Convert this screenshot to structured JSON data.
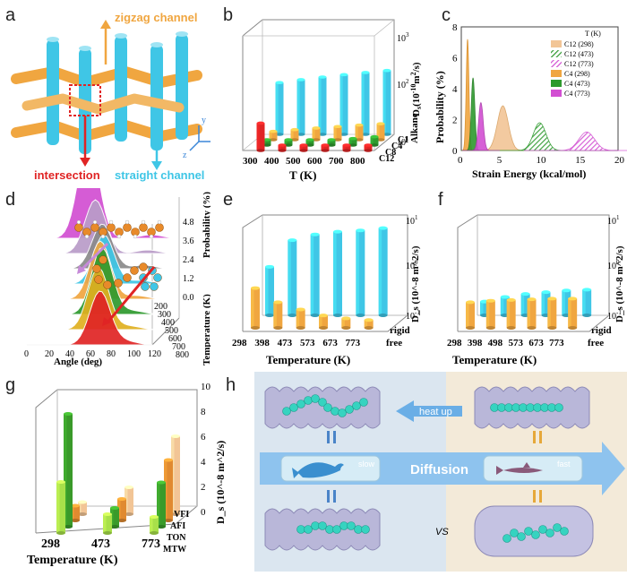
{
  "panels": {
    "a": {
      "label": "a",
      "zigzag_label": "zigzag channel",
      "intersection_label": "intersection",
      "straight_label": "straight channel",
      "axis_x": "x",
      "axis_y": "y",
      "axis_z": "z"
    },
    "b": {
      "label": "b",
      "xlabel": "T (K)",
      "zlabel": "D_s (10^-10 m^2/s)",
      "zaxis_label": "D",
      "zaxis_sub": "s",
      "zaxis_unit": "(10",
      "zaxis_exp": "-10",
      "zaxis_rest": "m",
      "zaxis_exp2": "2",
      "zaxis_end": "/s)",
      "alkane_label": "Alkane",
      "x_ticks": [
        "300",
        "400",
        "500",
        "600",
        "700",
        "800"
      ],
      "y_ticks": [
        "C12",
        "C8",
        "C4",
        "C1"
      ],
      "z_ticks": [
        "10^1",
        "10^2",
        "10^3"
      ],
      "z_tick_base": "10",
      "z_tick_exps": [
        "1",
        "2",
        "3"
      ]
    },
    "c": {
      "label": "c",
      "xlabel": "Strain Energy (kcal/mol)",
      "ylabel": "Probability (%)",
      "legend_title": "T (K)",
      "legend": [
        "C12 (298)",
        "C12 (473)",
        "C12 (773)",
        "C4 (298)",
        "C4 (473)",
        "C4 (773)"
      ],
      "x_ticks": [
        "0",
        "5",
        "10",
        "15",
        "20"
      ],
      "y_ticks": [
        "0",
        "2",
        "4",
        "6",
        "8"
      ]
    },
    "d": {
      "label": "d",
      "xlabel": "Angle (deg)",
      "ylabel": "Probability (%)",
      "zlabel": "Temperature (K)",
      "x_ticks": [
        "0",
        "20",
        "40",
        "60",
        "80",
        "100",
        "120"
      ],
      "p_ticks": [
        "0.0",
        "1.2",
        "2.4",
        "3.6",
        "4.8"
      ],
      "t_ticks": [
        "200",
        "300",
        "400",
        "500",
        "600",
        "700",
        "800"
      ]
    },
    "e": {
      "label": "e",
      "xlabel": "Temperature (K)",
      "zlabel": "D_s (10^-8 m^2/s)",
      "x_ticks": [
        "298",
        "398",
        "473",
        "573",
        "673",
        "773"
      ],
      "y_ticks": [
        "rigid",
        "free"
      ],
      "z_ticks": [
        "10^-1",
        "10^0",
        "10^1"
      ]
    },
    "f": {
      "label": "f",
      "xlabel": "Temperature (K)",
      "zlabel": "D_s (10^-8 m^2/s)",
      "x_ticks": [
        "298",
        "398",
        "498",
        "573",
        "673",
        "773"
      ],
      "y_ticks": [
        "rigid",
        "free"
      ],
      "z_ticks": [
        "10^-1",
        "10^0",
        "10^1"
      ]
    },
    "g": {
      "label": "g",
      "xlabel": "Temperature (K)",
      "zlabel": "D_s (10^-8 m^2/s)",
      "x_ticks": [
        "298",
        "473",
        "773"
      ],
      "y_ticks": [
        "VFI",
        "AFI",
        "TON",
        "MTW"
      ],
      "z_ticks": [
        "0",
        "2",
        "4",
        "6",
        "8",
        "10"
      ]
    },
    "h": {
      "label": "h",
      "heat_up": "heat up",
      "diffusion": "Diffusion",
      "slow": "slow",
      "fast": "fast",
      "vs": "VS"
    }
  },
  "colors": {
    "cyan": "#3fc6e6",
    "orange": "#f0a640",
    "red": "#e02424",
    "green": "#2e9a2e",
    "magenta": "#d24fd2",
    "tan": "#f2c596",
    "arrow_blue": "#6aaee6",
    "bead": "#36d3c0"
  },
  "chart_data": [
    {
      "panel": "b",
      "type": "bar",
      "title": "",
      "categories": [
        "300",
        "400",
        "500",
        "600",
        "700",
        "800"
      ],
      "series": [
        {
          "name": "C1",
          "values": [
            80,
            90,
            100,
            110,
            120,
            130
          ]
        },
        {
          "name": "C4",
          "values": [
            14,
            15,
            16,
            17,
            18,
            19
          ]
        },
        {
          "name": "C8",
          "values": [
            10,
            11,
            12,
            12,
            13,
            14
          ]
        },
        {
          "name": "C12",
          "values": [
            30,
            10,
            6,
            4,
            3,
            3
          ]
        }
      ],
      "xlabel": "T (K)",
      "ylabel": "D_s (10^-10 m^2/s)",
      "zscale": "log",
      "zlim": [
        10,
        1000
      ]
    },
    {
      "panel": "c",
      "type": "area",
      "title": "",
      "series": [
        {
          "name": "C12 (298)",
          "peak_x": 5.3,
          "peak_y": 2.9
        },
        {
          "name": "C12 (473)",
          "peak_x": 10.0,
          "peak_y": 1.8
        },
        {
          "name": "C12 (773)",
          "peak_x": 16.0,
          "peak_y": 1.2
        },
        {
          "name": "C4 (298)",
          "peak_x": 0.8,
          "peak_y": 7.2
        },
        {
          "name": "C4 (473)",
          "peak_x": 1.5,
          "peak_y": 4.7
        },
        {
          "name": "C4 (773)",
          "peak_x": 2.5,
          "peak_y": 3.1
        }
      ],
      "xlabel": "Strain Energy (kcal/mol)",
      "ylabel": "Probability (%)",
      "xlim": [
        0,
        20
      ],
      "ylim": [
        0,
        8
      ]
    },
    {
      "panel": "e",
      "type": "bar",
      "categories": [
        "298",
        "398",
        "473",
        "573",
        "673",
        "773"
      ],
      "series": [
        {
          "name": "rigid",
          "values": [
            0.8,
            2.5,
            3.2,
            3.6,
            3.8,
            4.2
          ]
        },
        {
          "name": "free",
          "values": [
            0.55,
            0.3,
            0.22,
            0.17,
            0.15,
            0.14
          ]
        }
      ],
      "zscale": "log",
      "zlim": [
        0.1,
        10
      ]
    },
    {
      "panel": "f",
      "type": "bar",
      "categories": [
        "298",
        "398",
        "498",
        "573",
        "673",
        "773"
      ],
      "series": [
        {
          "name": "rigid",
          "values": [
            0.18,
            0.22,
            0.25,
            0.27,
            0.29,
            0.3
          ]
        },
        {
          "name": "free",
          "values": [
            0.3,
            0.32,
            0.33,
            0.34,
            0.35,
            0.35
          ]
        }
      ],
      "zscale": "log",
      "zlim": [
        0.1,
        10
      ]
    },
    {
      "panel": "g",
      "type": "bar",
      "categories": [
        "298",
        "473",
        "773"
      ],
      "series": [
        {
          "name": "MTW",
          "values": [
            3.8,
            1.4,
            1.2
          ]
        },
        {
          "name": "TON",
          "values": [
            8.4,
            1.4,
            3.3
          ]
        },
        {
          "name": "AFI",
          "values": [
            1.1,
            1.6,
            4.5
          ]
        },
        {
          "name": "VFI",
          "values": [
            0.9,
            2.0,
            5.8
          ]
        }
      ],
      "zlim": [
        0,
        10
      ]
    }
  ]
}
